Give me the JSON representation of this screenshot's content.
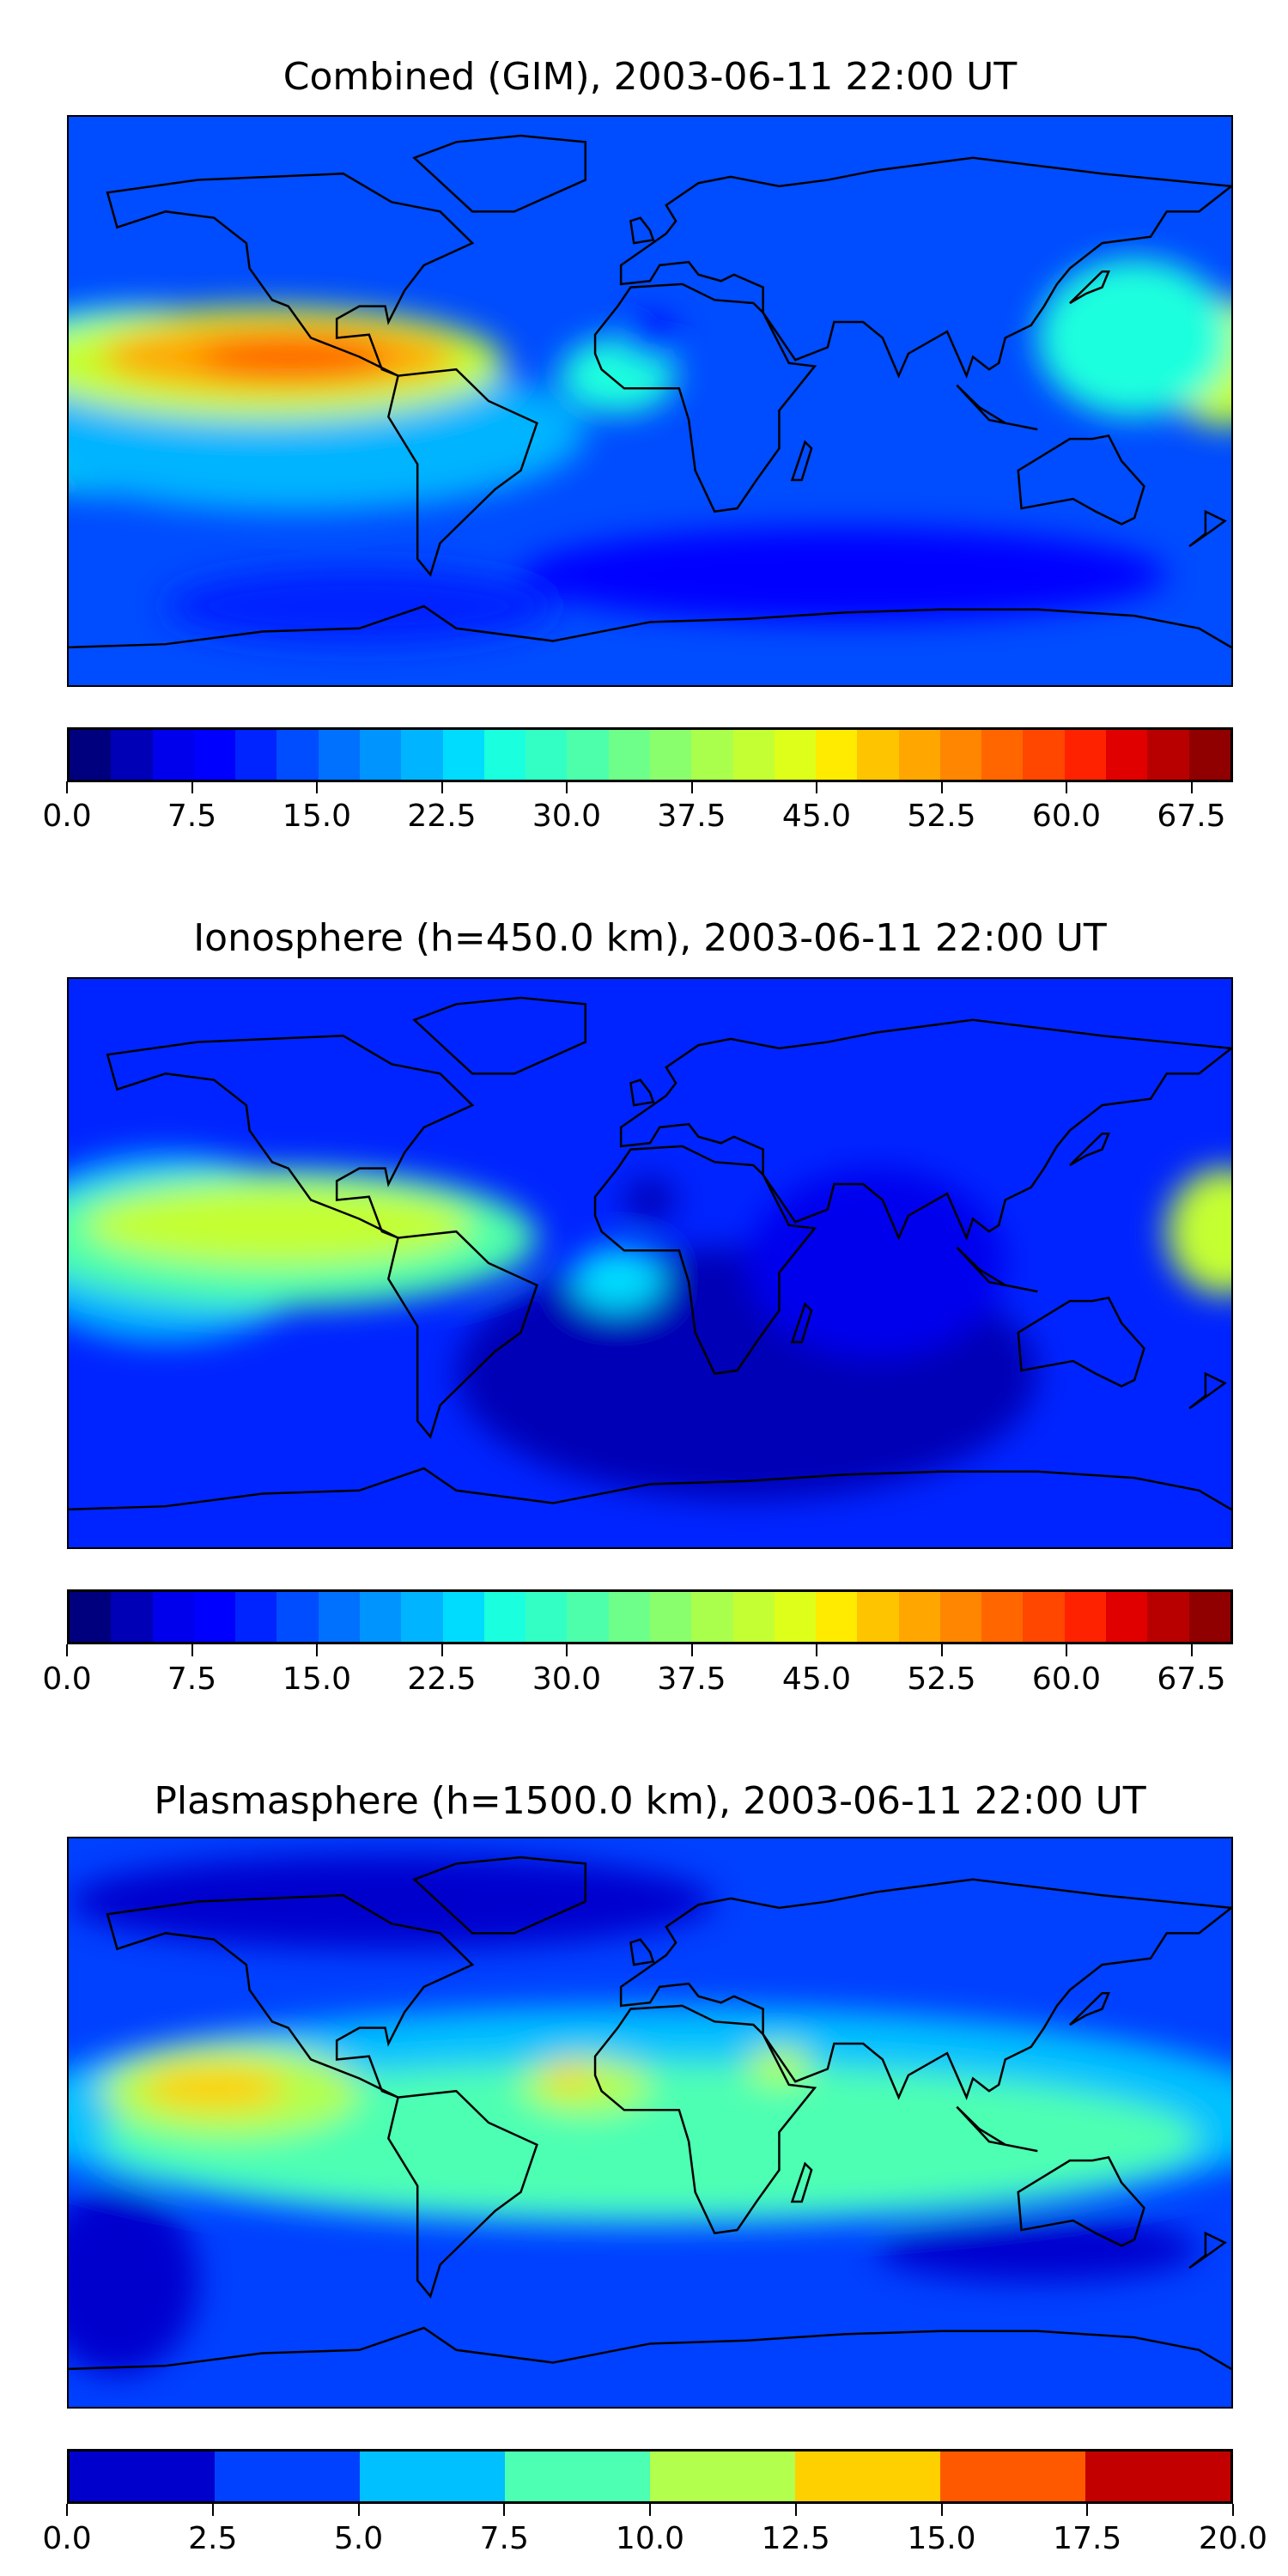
{
  "chart_data": [
    {
      "type": "heatmap",
      "title": "Combined (GIM), 2003-06-11 22:00 UT",
      "projection": "equirectangular",
      "lon_range": [
        -180,
        180
      ],
      "lat_range": [
        -90,
        90
      ],
      "colorbar": {
        "min": 0,
        "max": 70,
        "step": 2.5,
        "tick_labels": [
          "0.0",
          "7.5",
          "15.0",
          "22.5",
          "30.0",
          "37.5",
          "45.0",
          "52.5",
          "60.0",
          "67.5"
        ],
        "tick_values": [
          0,
          7.5,
          15,
          22.5,
          30,
          37.5,
          45,
          52.5,
          60,
          67.5
        ],
        "colors": [
          "#00007f",
          "#0000b6",
          "#0000ed",
          "#0000ff",
          "#0024ff",
          "#004cff",
          "#0070ff",
          "#0094ff",
          "#00b4ff",
          "#00dcfe",
          "#1affde",
          "#33ffc4",
          "#4dffaa",
          "#6dff8a",
          "#8aff6d",
          "#aaff4d",
          "#c4ff33",
          "#deff1a",
          "#ffeb00",
          "#ffc400",
          "#ffa700",
          "#ff8600",
          "#ff6600",
          "#ff4700",
          "#ff2200",
          "#e00000",
          "#b80000",
          "#900000"
        ]
      },
      "base_value": 14,
      "features": [
        {
          "lon": -160,
          "lat": 0,
          "rlon": 60,
          "rlat": 30,
          "value": 25
        },
        {
          "lon": -110,
          "lat": -10,
          "rlon": 90,
          "rlat": 25,
          "value": 22
        },
        {
          "lon": -120,
          "lat": 12,
          "rlon": 75,
          "rlat": 18,
          "value": 40
        },
        {
          "lon": -115,
          "lat": 14,
          "rlon": 55,
          "rlat": 11,
          "value": 50
        },
        {
          "lon": -110,
          "lat": 14,
          "rlon": 30,
          "rlat": 7,
          "value": 57
        },
        {
          "lon": 178,
          "lat": 12,
          "rlon": 20,
          "rlat": 20,
          "value": 42
        },
        {
          "lon": 150,
          "lat": 20,
          "rlon": 30,
          "rlat": 25,
          "value": 25
        },
        {
          "lon": -10,
          "lat": 8,
          "rlon": 18,
          "rlat": 12,
          "value": 27
        },
        {
          "lon": 0,
          "lat": 20,
          "rlon": 8,
          "rlat": 7,
          "value": 8
        },
        {
          "lon": 60,
          "lat": -55,
          "rlon": 100,
          "rlat": 15,
          "value": 9
        },
        {
          "lon": -90,
          "lat": -65,
          "rlon": 60,
          "rlat": 12,
          "value": 11
        }
      ]
    },
    {
      "type": "heatmap",
      "title": "Ionosphere  (h=450.0 km), 2003-06-11 22:00 UT",
      "projection": "equirectangular",
      "lon_range": [
        -180,
        180
      ],
      "lat_range": [
        -90,
        90
      ],
      "colorbar": {
        "min": 0,
        "max": 70,
        "step": 2.5,
        "tick_labels": [
          "0.0",
          "7.5",
          "15.0",
          "22.5",
          "30.0",
          "37.5",
          "45.0",
          "52.5",
          "60.0",
          "67.5"
        ],
        "tick_values": [
          0,
          7.5,
          15,
          22.5,
          30,
          37.5,
          45,
          52.5,
          60,
          67.5
        ],
        "colors": [
          "#00007f",
          "#0000b6",
          "#0000ed",
          "#0000ff",
          "#0024ff",
          "#004cff",
          "#0070ff",
          "#0094ff",
          "#00b4ff",
          "#00dcfe",
          "#1affde",
          "#33ffc4",
          "#4dffaa",
          "#6dff8a",
          "#8aff6d",
          "#aaff4d",
          "#c4ff33",
          "#deff1a",
          "#ffeb00",
          "#ffc400",
          "#ffa700",
          "#ff8600",
          "#ff6600",
          "#ff4700",
          "#ff2200",
          "#e00000",
          "#b80000",
          "#900000"
        ]
      },
      "base_value": 12,
      "features": [
        {
          "lon": 30,
          "lat": -35,
          "rlon": 90,
          "rlat": 40,
          "value": 3
        },
        {
          "lon": 70,
          "lat": 0,
          "rlon": 40,
          "rlat": 30,
          "value": 5
        },
        {
          "lon": -150,
          "lat": 5,
          "rlon": 50,
          "rlat": 30,
          "value": 22
        },
        {
          "lon": -115,
          "lat": 8,
          "rlon": 80,
          "rlat": 22,
          "value": 30
        },
        {
          "lon": -115,
          "lat": 12,
          "rlon": 60,
          "rlat": 13,
          "value": 40
        },
        {
          "lon": 178,
          "lat": 10,
          "rlon": 18,
          "rlat": 20,
          "value": 40
        },
        {
          "lon": 0,
          "lat": 20,
          "rlon": 8,
          "rlat": 7,
          "value": 3
        },
        {
          "lon": -10,
          "lat": -5,
          "rlon": 14,
          "rlat": 10,
          "value": 24
        }
      ]
    },
    {
      "type": "heatmap",
      "title": "Plasmasphere (h=1500.0 km), 2003-06-11 22:00 UT",
      "projection": "equirectangular",
      "lon_range": [
        -180,
        180
      ],
      "lat_range": [
        -90,
        90
      ],
      "colorbar": {
        "min": 0,
        "max": 20,
        "step": 2.5,
        "tick_labels": [
          "0.0",
          "2.5",
          "5.0",
          "7.5",
          "10.0",
          "12.5",
          "15.0",
          "17.5",
          "20.0"
        ],
        "tick_values": [
          0,
          2.5,
          5,
          7.5,
          10,
          12.5,
          15,
          17.5,
          20
        ],
        "colors": [
          "#0000cd",
          "#0040ff",
          "#00c0ff",
          "#4dffb2",
          "#b2ff4d",
          "#ffd000",
          "#ff5900",
          "#c30000"
        ]
      },
      "base_value": 3,
      "features": [
        {
          "lon": 0,
          "lat": 2,
          "rlon": 200,
          "rlat": 35,
          "value": 6
        },
        {
          "lon": 0,
          "lat": -5,
          "rlon": 170,
          "rlat": 24,
          "value": 8.5
        },
        {
          "lon": -130,
          "lat": 10,
          "rlon": 40,
          "rlat": 15,
          "value": 11
        },
        {
          "lon": -135,
          "lat": 11,
          "rlon": 22,
          "rlat": 7,
          "value": 13.5
        },
        {
          "lon": -20,
          "lat": 12,
          "rlon": 20,
          "rlat": 9,
          "value": 11
        },
        {
          "lon": -25,
          "lat": 14,
          "rlon": 7,
          "rlat": 4,
          "value": 14
        },
        {
          "lon": 40,
          "lat": 18,
          "rlon": 10,
          "rlat": 6,
          "value": 11
        },
        {
          "lon": -80,
          "lat": 70,
          "rlon": 100,
          "rlat": 15,
          "value": 1
        },
        {
          "lon": 120,
          "lat": -40,
          "rlon": 50,
          "rlat": 10,
          "value": 1
        },
        {
          "lon": -165,
          "lat": -50,
          "rlon": 25,
          "rlat": 30,
          "value": 1
        }
      ]
    }
  ]
}
